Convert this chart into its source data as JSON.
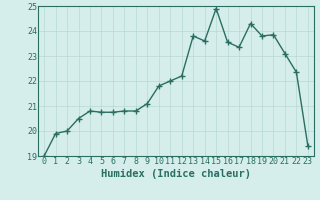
{
  "x": [
    0,
    1,
    2,
    3,
    4,
    5,
    6,
    7,
    8,
    9,
    10,
    11,
    12,
    13,
    14,
    15,
    16,
    17,
    18,
    19,
    20,
    21,
    22,
    23
  ],
  "y": [
    19.0,
    19.9,
    20.0,
    20.5,
    20.8,
    20.75,
    20.75,
    20.8,
    20.8,
    21.1,
    21.8,
    22.0,
    22.2,
    23.8,
    23.6,
    24.9,
    23.55,
    23.35,
    24.3,
    23.8,
    23.85,
    23.1,
    22.35,
    19.4
  ],
  "line_color": "#2a6e62",
  "marker": "+",
  "marker_size": 4,
  "marker_lw": 1.0,
  "bg_color": "#d5eeeb",
  "grid_color": "#b8d8d4",
  "xlabel": "Humidex (Indice chaleur)",
  "ylim": [
    19,
    25
  ],
  "xlim": [
    -0.5,
    23.5
  ],
  "yticks": [
    19,
    20,
    21,
    22,
    23,
    24,
    25
  ],
  "xticks": [
    0,
    1,
    2,
    3,
    4,
    5,
    6,
    7,
    8,
    9,
    10,
    11,
    12,
    13,
    14,
    15,
    16,
    17,
    18,
    19,
    20,
    21,
    22,
    23
  ],
  "tick_fontsize": 6,
  "xlabel_fontsize": 7.5,
  "tick_color": "#2a6e62",
  "spine_color": "#2a6e62",
  "line_width": 1.0
}
